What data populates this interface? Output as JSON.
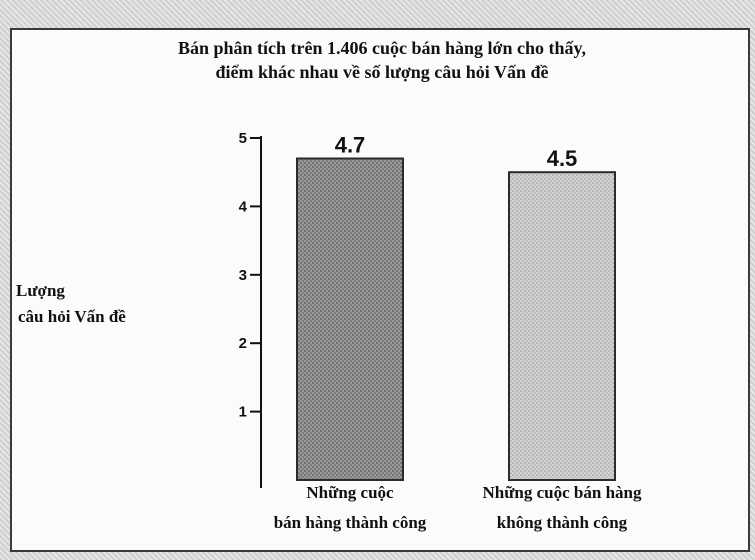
{
  "title_lines": [
    "Bán phân tích trên 1.406 cuộc bán hàng lớn cho thấy,",
    "điểm khác nhau về số lượng câu hỏi Vấn đề"
  ],
  "ylabel_lines": [
    "Lượng",
    "câu hỏi Vấn đề"
  ],
  "chart_data": {
    "type": "bar",
    "title": "Bán phân tích trên 1.406 cuộc bán hàng lớn cho thấy, điểm khác nhau về số lượng câu hỏi Vấn đề",
    "xlabel": "",
    "ylabel": "Lượng câu hỏi Vấn đề",
    "categories": [
      [
        "Những cuộc",
        "bán hàng thành công"
      ],
      [
        "Những cuộc bán hàng",
        "không thành công"
      ]
    ],
    "values": [
      4.7,
      4.5
    ],
    "value_labels": [
      "4.7",
      "4.5"
    ],
    "ylim": [
      0,
      5
    ],
    "yticks": [
      1,
      2,
      3,
      4,
      5
    ],
    "grid": false,
    "bar_colors": [
      "#8c8c8c",
      "#c4c4c4"
    ]
  }
}
